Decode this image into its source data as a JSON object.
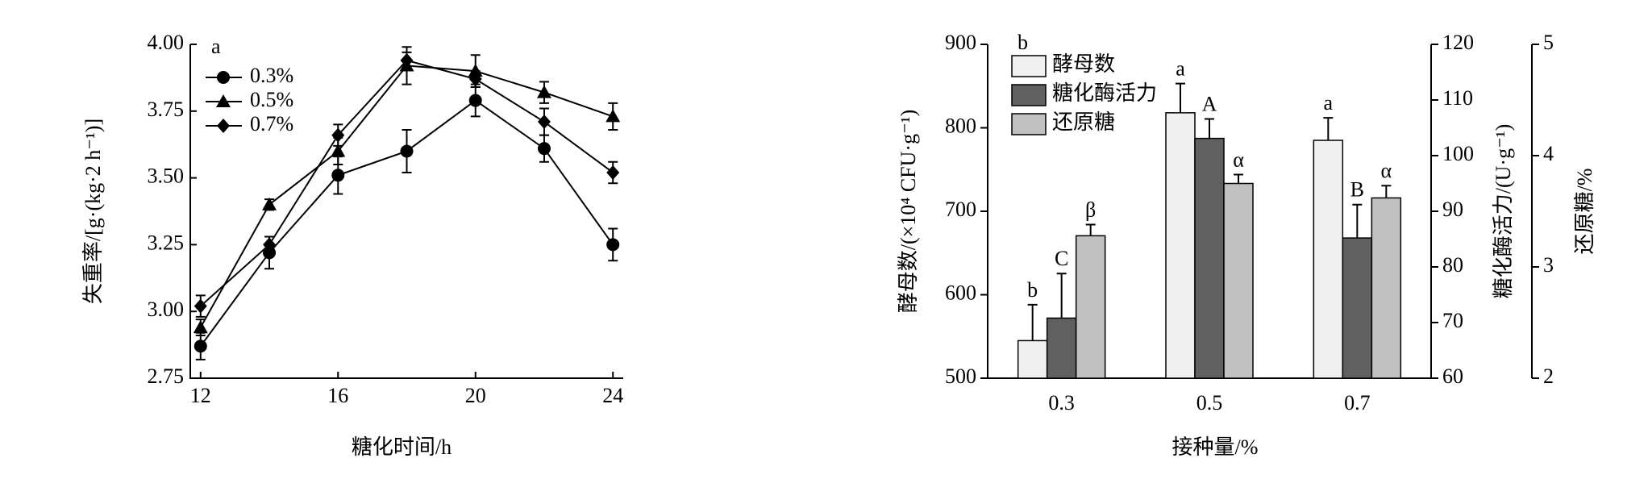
{
  "chart_data": [
    {
      "type": "line",
      "panel": "a",
      "x_label": "糖化时间/h",
      "y_label": "失重率/[g·(kg·2 h⁻¹)]",
      "x": [
        12,
        14,
        16,
        18,
        20,
        22,
        24
      ],
      "xlim": [
        11.7,
        24.3
      ],
      "xticks": [
        12,
        16,
        20,
        24
      ],
      "ylim": [
        2.75,
        4.0
      ],
      "yticks": [
        {
          "value": 2.75,
          "label": "2.75"
        },
        {
          "value": 3.0,
          "label": "3.00"
        },
        {
          "value": 3.25,
          "label": "3.25"
        },
        {
          "value": 3.5,
          "label": "3.50"
        },
        {
          "value": 3.75,
          "label": "3.75"
        },
        {
          "value": 4.0,
          "label": "4.00"
        }
      ],
      "series": [
        {
          "name": "0.3%",
          "color": "#000000",
          "marker": "circle",
          "values": [
            2.87,
            3.22,
            3.51,
            3.6,
            3.79,
            3.61,
            3.25
          ],
          "errors": [
            0.05,
            0.06,
            0.07,
            0.08,
            0.06,
            0.05,
            0.06
          ]
        },
        {
          "name": "0.5%",
          "color": "#000000",
          "marker": "triangle",
          "values": [
            2.94,
            3.4,
            3.6,
            3.92,
            3.9,
            3.82,
            3.73
          ],
          "errors": [
            0.03,
            0.02,
            0.05,
            0.07,
            0.06,
            0.04,
            0.05
          ]
        },
        {
          "name": "0.7%",
          "color": "#000000",
          "marker": "diamond",
          "values": [
            3.02,
            3.25,
            3.66,
            3.94,
            3.87,
            3.71,
            3.52
          ],
          "errors": [
            0.04,
            0.03,
            0.04,
            0.03,
            0.03,
            0.05,
            0.04
          ]
        }
      ]
    },
    {
      "type": "bar",
      "panel": "b",
      "x_label": "接种量/%",
      "y_label": "酵母数/(×10⁴ CFU·g⁻¹)",
      "y2_label": "糖化酶活力/(U·g⁻¹)",
      "y3_label": "还原糖/%",
      "categories": [
        "0.3",
        "0.5",
        "0.7"
      ],
      "ylim": [
        500,
        900
      ],
      "yticks": [
        500,
        600,
        700,
        800,
        900
      ],
      "y2lim": [
        60,
        120
      ],
      "y2ticks": [
        60,
        70,
        80,
        90,
        100,
        110,
        120
      ],
      "y3lim": [
        2,
        5
      ],
      "y3ticks": [
        2,
        3,
        4,
        5
      ],
      "series": [
        {
          "name": "酵母数",
          "color": "#f0f0f0",
          "axis": "y",
          "values": [
            545,
            818,
            785
          ],
          "errors": [
            43,
            35,
            27
          ],
          "letters": [
            "b",
            "a",
            "a"
          ]
        },
        {
          "name": "糖化酶活力",
          "color": "#606060",
          "axis": "y2",
          "values": [
            70.8,
            103.1,
            85.2
          ],
          "errors": [
            8,
            3.5,
            6
          ],
          "letters": [
            "C",
            "A",
            "B"
          ]
        },
        {
          "name": "还原糖",
          "color": "#c0c0c0",
          "axis": "y3",
          "values": [
            3.28,
            3.75,
            3.62
          ],
          "errors": [
            0.1,
            0.08,
            0.11
          ],
          "letters": [
            "β",
            "α",
            "α"
          ]
        }
      ]
    }
  ]
}
